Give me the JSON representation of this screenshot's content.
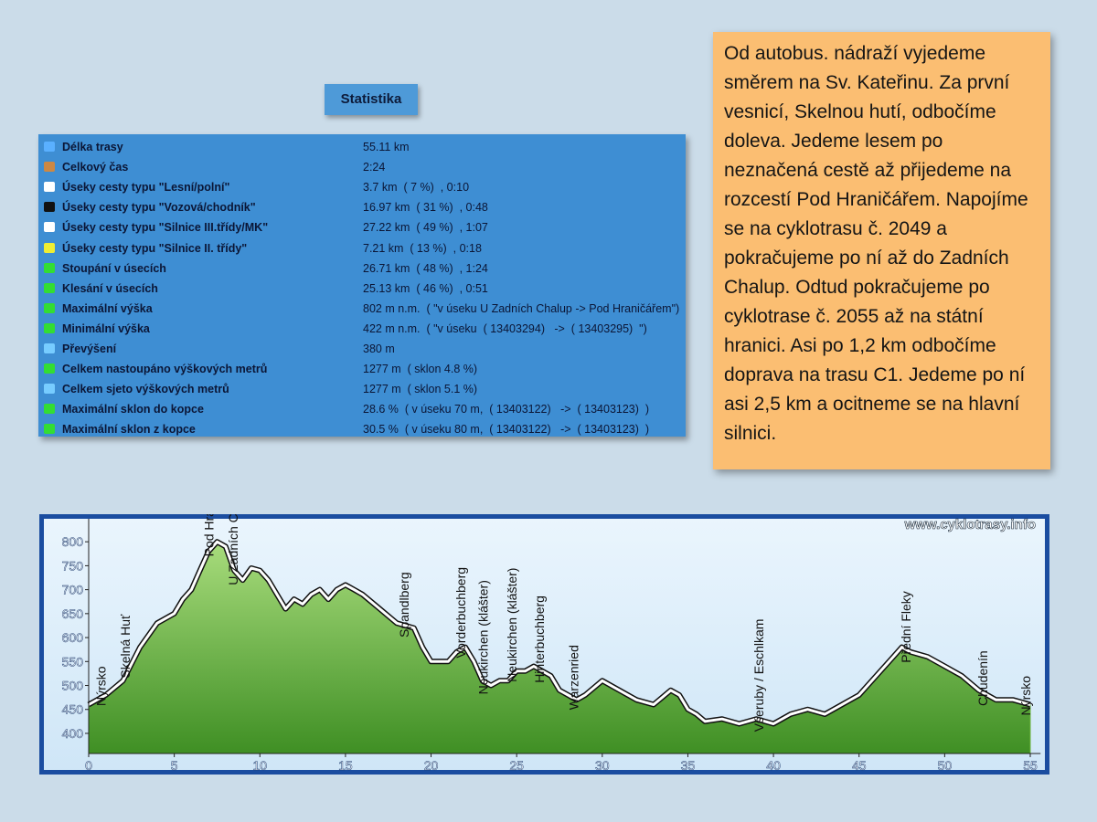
{
  "header": {
    "title": "Statistika"
  },
  "statistics": {
    "rows": [
      [
        "Délka trasy",
        "55.11 km"
      ],
      [
        "Celkový čas",
        "2:24"
      ],
      [
        "Úseky cesty typu \"Lesní/polní\"",
        "3.7 km  ( 7 %)  , 0:10"
      ],
      [
        "Úseky cesty typu \"Vozová/chodník\"",
        "16.97 km  ( 31 %)  , 0:48"
      ],
      [
        "Úseky cesty typu \"Silnice III.třídy/MK\"",
        "27.22 km  ( 49 %)  , 1:07"
      ],
      [
        "Úseky cesty typu \"Silnice II. třídy\"",
        "7.21 km  ( 13 %)  , 0:18"
      ],
      [
        "Stoupání v úsecích",
        "26.71 km  ( 48 %)  , 1:24"
      ],
      [
        "Klesání v úsecích",
        "25.13 km  ( 46 %)  , 0:51"
      ],
      [
        "Maximální výška",
        "802 m n.m.  ( \"v úseku U Zadních Chalup -> Pod Hraničářem\")"
      ],
      [
        "Minimální výška",
        "422 m n.m.  ( \"v úseku  ( 13403294)   ->  ( 13403295)  \")"
      ],
      [
        "Převýšení",
        "380 m"
      ],
      [
        "Celkem nastoupáno výškových metrů",
        "1277 m  ( sklon 4.8 %)"
      ],
      [
        "Celkem sjeto výškových metrů",
        "1277 m  ( sklon 5.1 %)"
      ],
      [
        "Maximální sklon do kopce",
        "28.6 %  ( v úseku 70 m,  ( 13403122)   ->  ( 13403123)  )"
      ],
      [
        "Maximální sklon z kopce",
        "30.5 %  ( v úseku 80 m,  ( 13403122)   ->  ( 13403123)  )"
      ]
    ]
  },
  "description": {
    "text": "Od autobus. nádraží vyjedeme směrem na Sv. Kateřinu. Za první vesnicí, Skelnou hutí, odbočíme doleva. Jedeme lesem po neznačená cestě až přijedeme na rozcestí Pod Hraničářem. Napojíme se na cyklotrasu č. 2049 a pokračujeme po ní až do Zadních Chalup. Odtud pokračujeme po cyklotrase č. 2055 až na státní hranici. Asi po 1,2 km odbočíme doprava na trasu C1. Jedeme po ní asi 2,5 km a ocitneme se na hlavní silnici."
  },
  "chart_data": {
    "type": "area",
    "watermark": "www.cyklotrasy.info",
    "x": [
      0,
      1,
      2,
      3,
      4,
      5,
      5.5,
      6,
      6.5,
      7,
      7.5,
      8,
      8.5,
      9,
      9.5,
      10,
      10.5,
      11,
      11.5,
      12,
      12.5,
      13,
      13.5,
      14,
      14.5,
      15,
      15.5,
      16,
      17,
      18,
      19,
      19.5,
      20,
      21,
      21.5,
      22,
      22.5,
      23,
      23.5,
      24,
      24.5,
      25,
      25.5,
      26,
      27,
      27.5,
      28,
      28.5,
      29,
      30,
      31,
      32,
      33,
      34,
      34.5,
      35,
      35.5,
      36,
      37,
      38,
      39,
      40,
      41,
      42,
      43,
      44,
      45,
      46,
      47,
      47.5,
      48,
      49,
      50,
      51,
      52,
      53,
      53.5,
      54,
      55
    ],
    "values": [
      460,
      480,
      510,
      580,
      630,
      650,
      680,
      700,
      740,
      780,
      800,
      790,
      740,
      720,
      745,
      740,
      720,
      690,
      660,
      680,
      670,
      690,
      700,
      680,
      700,
      710,
      700,
      690,
      660,
      630,
      620,
      580,
      550,
      550,
      570,
      580,
      550,
      510,
      500,
      510,
      510,
      530,
      530,
      540,
      520,
      490,
      480,
      470,
      480,
      510,
      490,
      470,
      460,
      490,
      480,
      450,
      440,
      425,
      430,
      420,
      430,
      420,
      440,
      450,
      440,
      460,
      480,
      520,
      560,
      580,
      570,
      560,
      540,
      520,
      490,
      470,
      470,
      470,
      460
    ],
    "color": "#6cb43c",
    "xlim": [
      0,
      55.6
    ],
    "ylim": [
      358,
      848
    ],
    "xticks": [
      0,
      5,
      10,
      15,
      20,
      25,
      30,
      35,
      40,
      45,
      50,
      55
    ],
    "yticks": [
      400,
      450,
      500,
      550,
      600,
      650,
      700,
      750,
      800
    ],
    "annotations": [
      {
        "text": "Nýrsko",
        "x": 1
      },
      {
        "text": "Skelná Huť",
        "x": 2.4
      },
      {
        "text": "Pod Hraničářem",
        "x": 7.3
      },
      {
        "text": "U Zadních Chalup",
        "x": 8.7
      },
      {
        "text": "Spandlberg",
        "x": 18.7
      },
      {
        "text": "Vorderbuchberg",
        "x": 22
      },
      {
        "text": "Neukirchen (klášter)",
        "x": 23.3
      },
      {
        "text": "Neukirchen (klášter)",
        "x": 25
      },
      {
        "text": "Hinterbuchberg",
        "x": 26.6
      },
      {
        "text": "Warzenried",
        "x": 28.6
      },
      {
        "text": "Všeruby / Eschlkam",
        "x": 39.4
      },
      {
        "text": "Přední Fleky",
        "x": 48
      },
      {
        "text": "Chudenín",
        "x": 52.5
      },
      {
        "text": "Nýrsko",
        "x": 55
      }
    ]
  }
}
